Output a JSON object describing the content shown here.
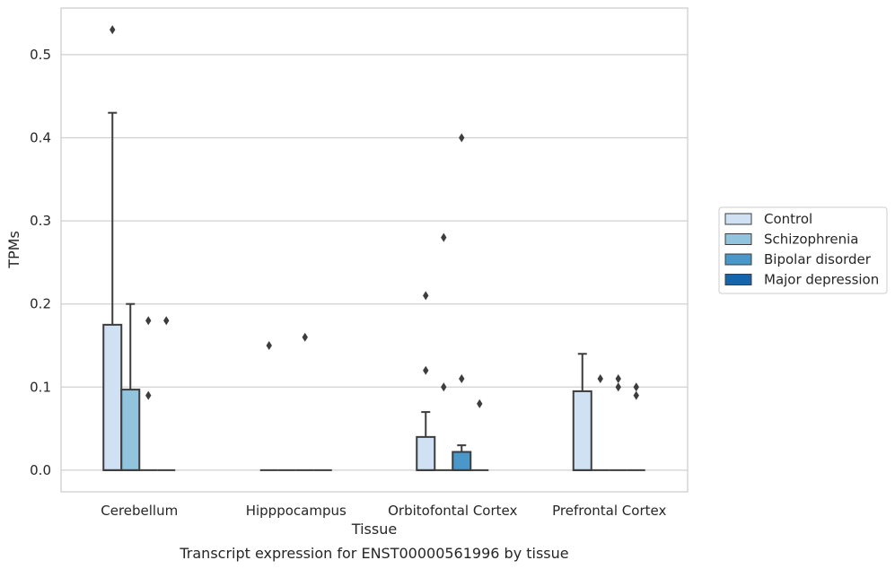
{
  "chart_data": {
    "type": "box",
    "caption": "Transcript expression for ENST00000561996 by tissue",
    "xlabel": "Tissue",
    "ylabel": "TPMs",
    "ylim": [
      -0.026,
      0.556
    ],
    "yticks": [
      "0.0",
      "0.1",
      "0.2",
      "0.3",
      "0.4",
      "0.5"
    ],
    "grid": true,
    "legend_position": "right",
    "categories": [
      "Cerebellum",
      "Hipppocampus",
      "Orbitofontal Cortex",
      "Prefrontal Cortex"
    ],
    "series": [
      {
        "name": "Control",
        "color": "#cfe1f2",
        "boxes": [
          {
            "q1": 0,
            "median": 0,
            "q3": 0.175,
            "whisker_low": 0,
            "whisker_high": 0.43,
            "outliers": [
              0.53
            ]
          },
          {
            "q1": 0,
            "median": 0,
            "q3": 0,
            "whisker_low": 0,
            "whisker_high": 0,
            "outliers": [
              0.15
            ]
          },
          {
            "q1": 0,
            "median": 0,
            "q3": 0.04,
            "whisker_low": 0,
            "whisker_high": 0.07,
            "outliers": [
              0.12,
              0.21
            ]
          },
          {
            "q1": 0,
            "median": 0,
            "q3": 0.095,
            "whisker_low": 0,
            "whisker_high": 0.14,
            "outliers": []
          }
        ]
      },
      {
        "name": "Schizophrenia",
        "color": "#93c4de",
        "boxes": [
          {
            "q1": 0,
            "median": 0,
            "q3": 0.097,
            "whisker_low": 0,
            "whisker_high": 0.2,
            "outliers": []
          },
          {
            "q1": 0,
            "median": 0,
            "q3": 0,
            "whisker_low": 0,
            "whisker_high": 0,
            "outliers": []
          },
          {
            "q1": 0,
            "median": 0,
            "q3": 0,
            "whisker_low": 0,
            "whisker_high": 0,
            "outliers": [
              0.1,
              0.28
            ]
          },
          {
            "q1": 0,
            "median": 0,
            "q3": 0,
            "whisker_low": 0,
            "whisker_high": 0,
            "outliers": [
              0.11
            ]
          }
        ]
      },
      {
        "name": "Bipolar disorder",
        "color": "#4a98c9",
        "boxes": [
          {
            "q1": 0,
            "median": 0,
            "q3": 0,
            "whisker_low": 0,
            "whisker_high": 0,
            "outliers": [
              0.09,
              0.18
            ]
          },
          {
            "q1": 0,
            "median": 0,
            "q3": 0,
            "whisker_low": 0,
            "whisker_high": 0,
            "outliers": [
              0.16
            ]
          },
          {
            "q1": 0,
            "median": 0,
            "q3": 0.022,
            "whisker_low": 0,
            "whisker_high": 0.03,
            "outliers": [
              0.11,
              0.4
            ]
          },
          {
            "q1": 0,
            "median": 0,
            "q3": 0,
            "whisker_low": 0,
            "whisker_high": 0,
            "outliers": [
              0.1,
              0.11
            ]
          }
        ]
      },
      {
        "name": "Major depression",
        "color": "#1764ab",
        "boxes": [
          {
            "q1": 0,
            "median": 0,
            "q3": 0,
            "whisker_low": 0,
            "whisker_high": 0,
            "outliers": [
              0.18
            ]
          },
          {
            "q1": 0,
            "median": 0,
            "q3": 0,
            "whisker_low": 0,
            "whisker_high": 0,
            "outliers": []
          },
          {
            "q1": 0,
            "median": 0,
            "q3": 0,
            "whisker_low": 0,
            "whisker_high": 0,
            "outliers": [
              0.08
            ]
          },
          {
            "q1": 0,
            "median": 0,
            "q3": 0,
            "whisker_low": 0,
            "whisker_high": 0,
            "outliers": [
              0.09,
              0.1
            ]
          }
        ]
      }
    ]
  }
}
